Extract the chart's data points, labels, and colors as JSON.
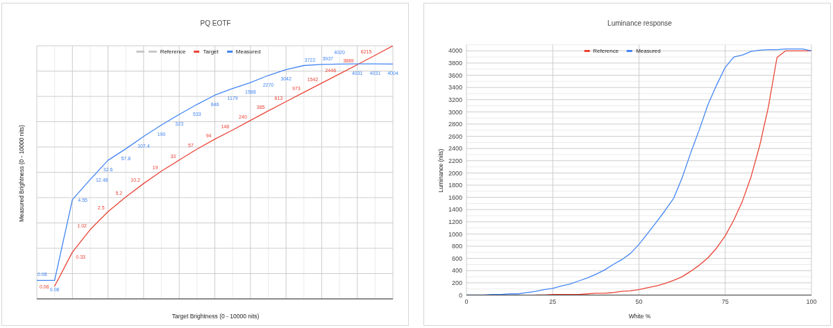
{
  "chart_data": [
    {
      "type": "line",
      "title": "PQ EOTF",
      "xlabel": "Target Brightness (0 - 10000 nits)",
      "ylabel": "Measured Brightness (0 - 10000 nits)",
      "log": true,
      "grid": true,
      "legend": "top",
      "categories": [
        null,
        null,
        null,
        null,
        null,
        null,
        null,
        null,
        null,
        null,
        null,
        null,
        null,
        null,
        null,
        null,
        null,
        null,
        null,
        null,
        null
      ],
      "series": [
        {
          "name": "Reference",
          "color": "#c8c8c8",
          "line_style": "dashed",
          "values": [
            null,
            null,
            null,
            null,
            null,
            null,
            null,
            null,
            null,
            null,
            null,
            null,
            null,
            null,
            null,
            null,
            null,
            null,
            null,
            null,
            null
          ]
        },
        {
          "name": "Target",
          "color": "#ea4335",
          "values": [
            null,
            0.06,
            0.33,
            1.02,
            2.5,
            5.2,
            10.2,
            19,
            33,
            57,
            94,
            148,
            240,
            385,
            613,
            973,
            1542,
            2446,
            3889,
            6215,
            10000
          ],
          "value_labels": [
            null,
            "0.06",
            "0.33",
            "1.02",
            "2.5",
            "5.2",
            "10.2",
            "19",
            "33",
            "57",
            "94",
            "148",
            "240",
            "385",
            "613",
            "973",
            "1542",
            "2446",
            "3889",
            "6215",
            null
          ]
        },
        {
          "name": "Measured",
          "color": "#4285f4",
          "values": [
            0.08,
            0.08,
            4.55,
            12.48,
            32.6,
            57.8,
            107.4,
            190,
            323,
            533,
            846,
            1179,
            1588,
            2270,
            3042,
            3722,
            3937,
            4020,
            4031,
            4031,
            4004
          ],
          "value_labels": [
            "0.08",
            "0.08",
            "4.55",
            "12.48",
            "32.6",
            "57.8",
            "107.4",
            "190",
            "323",
            "533",
            "846",
            "1179",
            "1588",
            "2270",
            "3042",
            "3722",
            "3937",
            "4020",
            "4031",
            "4031",
            "4004"
          ]
        }
      ]
    },
    {
      "type": "line",
      "title": "Luminance response",
      "xlabel": "White %",
      "ylabel": "Luminance (nits)",
      "grid": true,
      "legend": "top",
      "x": [
        0,
        2.5,
        5,
        7.5,
        10,
        12.5,
        15,
        17.5,
        20,
        22.5,
        25,
        27.5,
        30,
        32.5,
        35,
        37.5,
        40,
        42.5,
        45,
        47.5,
        50,
        52.5,
        55,
        57.5,
        60,
        62.5,
        65,
        67.5,
        70,
        72.5,
        75,
        77.5,
        80,
        82.5,
        85,
        87.5,
        90,
        92.5,
        95,
        97.5,
        100
      ],
      "xlim": [
        0,
        100
      ],
      "xticks": [
        0,
        25,
        50,
        75,
        100
      ],
      "ylim": [
        0,
        4100
      ],
      "yticks": [
        0,
        200,
        400,
        600,
        800,
        1000,
        1200,
        1400,
        1600,
        1800,
        2000,
        2200,
        2400,
        2600,
        2800,
        3000,
        3200,
        3400,
        3600,
        3800,
        4000
      ],
      "series": [
        {
          "name": "Reference",
          "color": "#ea4335",
          "values": [
            null,
            null,
            null,
            null,
            null,
            null,
            null,
            null,
            0,
            0,
            10,
            10,
            10,
            10,
            20,
            30,
            30,
            40,
            60,
            70,
            90,
            120,
            150,
            190,
            240,
            300,
            390,
            490,
            610,
            770,
            970,
            1230,
            1540,
            1940,
            2450,
            3080,
            3890,
            4000,
            4000,
            4000,
            4000
          ]
        },
        {
          "name": "Measured",
          "color": "#4285f4",
          "values": [
            0,
            0,
            0,
            10,
            10,
            20,
            20,
            40,
            60,
            90,
            110,
            150,
            180,
            230,
            280,
            340,
            410,
            500,
            580,
            680,
            830,
            1010,
            1190,
            1380,
            1580,
            1920,
            2330,
            2710,
            3120,
            3440,
            3730,
            3900,
            3930,
            3990,
            4010,
            4020,
            4020,
            4030,
            4030,
            4030,
            4000
          ]
        }
      ]
    }
  ]
}
